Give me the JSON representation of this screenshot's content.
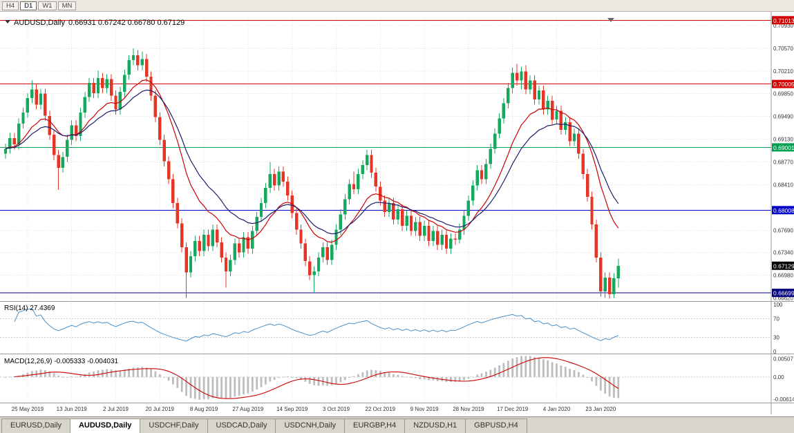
{
  "toolbar": {
    "timeframe_buttons": [
      {
        "label": "H4",
        "active": false
      },
      {
        "label": "D1",
        "active": true
      },
      {
        "label": "W1",
        "active": false
      },
      {
        "label": "MN",
        "active": false
      }
    ]
  },
  "chart": {
    "title": "AUDUSD,Daily",
    "ohlc_text": "0.66931 0.67242 0.66780 0.67129",
    "rsi_label": "RSI(14) 27.4369",
    "macd_label": "MACD(12,26,9) -0.005333 -0.004031"
  },
  "chart_data": {
    "type": "candlestick",
    "symbol": "AUDUSD",
    "timeframe": "Daily",
    "ohlc_display": {
      "open": 0.66931,
      "high": 0.67242,
      "low": 0.6678,
      "close": 0.67129
    },
    "ylim": [
      0.6658,
      0.7106
    ],
    "grid_color": "#e0e0e0",
    "up_color": "#16a85e",
    "down_color": "#e53527",
    "candles": [
      [
        0.689,
        0.6906,
        0.6882,
        0.6898
      ],
      [
        0.6898,
        0.6923,
        0.689,
        0.6915
      ],
      [
        0.6915,
        0.6923,
        0.6897,
        0.6905
      ],
      [
        0.6905,
        0.6946,
        0.6897,
        0.6938
      ],
      [
        0.6938,
        0.6963,
        0.693,
        0.6955
      ],
      [
        0.6955,
        0.6986,
        0.6947,
        0.6978
      ],
      [
        0.6978,
        0.7006,
        0.697,
        0.6992
      ],
      [
        0.6992,
        0.7,
        0.696,
        0.6968
      ],
      [
        0.6968,
        0.6993,
        0.696,
        0.6985
      ],
      [
        0.6985,
        0.6993,
        0.6942,
        0.695
      ],
      [
        0.695,
        0.6958,
        0.6912,
        0.692
      ],
      [
        0.692,
        0.6928,
        0.688,
        0.6888
      ],
      [
        0.6888,
        0.6896,
        0.6833,
        0.6868
      ],
      [
        0.6868,
        0.6893,
        0.686,
        0.6885
      ],
      [
        0.6885,
        0.692,
        0.6877,
        0.6912
      ],
      [
        0.6912,
        0.6943,
        0.6904,
        0.6935
      ],
      [
        0.6935,
        0.6943,
        0.691,
        0.6918
      ],
      [
        0.6918,
        0.6963,
        0.691,
        0.6955
      ],
      [
        0.6955,
        0.6988,
        0.6947,
        0.698
      ],
      [
        0.698,
        0.701,
        0.6972,
        0.7002
      ],
      [
        0.7002,
        0.701,
        0.6978,
        0.6986
      ],
      [
        0.6986,
        0.7022,
        0.6978,
        0.701
      ],
      [
        0.701,
        0.7018,
        0.6986,
        0.6994
      ],
      [
        0.6994,
        0.7016,
        0.6986,
        0.7008
      ],
      [
        0.7008,
        0.7016,
        0.6974,
        0.6982
      ],
      [
        0.6982,
        0.699,
        0.6952,
        0.696
      ],
      [
        0.696,
        0.6996,
        0.6952,
        0.6988
      ],
      [
        0.6988,
        0.7023,
        0.698,
        0.7015
      ],
      [
        0.7015,
        0.7046,
        0.7007,
        0.7038
      ],
      [
        0.7038,
        0.7057,
        0.703,
        0.7046
      ],
      [
        0.7046,
        0.7054,
        0.7022,
        0.703
      ],
      [
        0.703,
        0.7052,
        0.7022,
        0.704
      ],
      [
        0.704,
        0.7048,
        0.7004,
        0.7012
      ],
      [
        0.7012,
        0.702,
        0.6974,
        0.6982
      ],
      [
        0.6982,
        0.699,
        0.694,
        0.6948
      ],
      [
        0.6948,
        0.6956,
        0.6904,
        0.6912
      ],
      [
        0.6912,
        0.692,
        0.687,
        0.6878
      ],
      [
        0.6878,
        0.6886,
        0.6842,
        0.685
      ],
      [
        0.685,
        0.6858,
        0.6804,
        0.6812
      ],
      [
        0.6812,
        0.682,
        0.6772,
        0.678
      ],
      [
        0.678,
        0.6788,
        0.6734,
        0.6742
      ],
      [
        0.6742,
        0.675,
        0.6662,
        0.6702
      ],
      [
        0.6702,
        0.6736,
        0.6694,
        0.6728
      ],
      [
        0.6728,
        0.676,
        0.672,
        0.6752
      ],
      [
        0.6752,
        0.676,
        0.6728,
        0.6736
      ],
      [
        0.6736,
        0.677,
        0.6728,
        0.6762
      ],
      [
        0.6762,
        0.677,
        0.6736,
        0.6744
      ],
      [
        0.6744,
        0.6778,
        0.6736,
        0.677
      ],
      [
        0.677,
        0.6778,
        0.6742,
        0.675
      ],
      [
        0.675,
        0.6758,
        0.6718,
        0.6726
      ],
      [
        0.6726,
        0.6734,
        0.6678,
        0.6704
      ],
      [
        0.6704,
        0.673,
        0.6696,
        0.6722
      ],
      [
        0.6722,
        0.6756,
        0.6714,
        0.6748
      ],
      [
        0.6748,
        0.6756,
        0.6726,
        0.6734
      ],
      [
        0.6734,
        0.6766,
        0.6726,
        0.6758
      ],
      [
        0.6758,
        0.6766,
        0.6732,
        0.674
      ],
      [
        0.674,
        0.6776,
        0.6732,
        0.6768
      ],
      [
        0.6768,
        0.6798,
        0.676,
        0.679
      ],
      [
        0.679,
        0.682,
        0.6782,
        0.6812
      ],
      [
        0.6812,
        0.6844,
        0.6804,
        0.6836
      ],
      [
        0.6836,
        0.6877,
        0.6828,
        0.6858
      ],
      [
        0.6858,
        0.6866,
        0.6832,
        0.684
      ],
      [
        0.684,
        0.687,
        0.6832,
        0.6862
      ],
      [
        0.6862,
        0.687,
        0.6838,
        0.6846
      ],
      [
        0.6846,
        0.6854,
        0.6816,
        0.6824
      ],
      [
        0.6824,
        0.6832,
        0.6788,
        0.6796
      ],
      [
        0.6796,
        0.6804,
        0.6762,
        0.677
      ],
      [
        0.677,
        0.6778,
        0.674,
        0.6748
      ],
      [
        0.6748,
        0.6756,
        0.6712,
        0.672
      ],
      [
        0.672,
        0.6728,
        0.669,
        0.6698
      ],
      [
        0.6698,
        0.6712,
        0.6671,
        0.6704
      ],
      [
        0.6704,
        0.6734,
        0.6696,
        0.6726
      ],
      [
        0.6726,
        0.675,
        0.6718,
        0.6742
      ],
      [
        0.6742,
        0.675,
        0.6714,
        0.6722
      ],
      [
        0.6722,
        0.6754,
        0.6714,
        0.6746
      ],
      [
        0.6746,
        0.6778,
        0.6738,
        0.677
      ],
      [
        0.677,
        0.6802,
        0.6762,
        0.6794
      ],
      [
        0.6794,
        0.6826,
        0.6786,
        0.6818
      ],
      [
        0.6818,
        0.685,
        0.681,
        0.6842
      ],
      [
        0.6842,
        0.6862,
        0.6826,
        0.6834
      ],
      [
        0.6834,
        0.6866,
        0.6826,
        0.6858
      ],
      [
        0.6858,
        0.688,
        0.685,
        0.6872
      ],
      [
        0.6872,
        0.6896,
        0.6864,
        0.6888
      ],
      [
        0.6888,
        0.6896,
        0.6852,
        0.686
      ],
      [
        0.686,
        0.6868,
        0.683,
        0.6838
      ],
      [
        0.6838,
        0.6846,
        0.6808,
        0.6816
      ],
      [
        0.6816,
        0.6824,
        0.679,
        0.6798
      ],
      [
        0.6798,
        0.682,
        0.679,
        0.6812
      ],
      [
        0.6812,
        0.682,
        0.6778,
        0.6786
      ],
      [
        0.6786,
        0.681,
        0.6778,
        0.6802
      ],
      [
        0.6802,
        0.681,
        0.6768,
        0.6776
      ],
      [
        0.6776,
        0.68,
        0.6768,
        0.6792
      ],
      [
        0.6792,
        0.68,
        0.676,
        0.6768
      ],
      [
        0.6768,
        0.679,
        0.676,
        0.6782
      ],
      [
        0.6782,
        0.679,
        0.6752,
        0.676
      ],
      [
        0.676,
        0.6784,
        0.6752,
        0.6776
      ],
      [
        0.6776,
        0.6784,
        0.6744,
        0.6752
      ],
      [
        0.6752,
        0.6776,
        0.6744,
        0.6768
      ],
      [
        0.6768,
        0.6776,
        0.6738,
        0.6746
      ],
      [
        0.6746,
        0.677,
        0.6738,
        0.6762
      ],
      [
        0.6762,
        0.677,
        0.6732,
        0.674
      ],
      [
        0.674,
        0.6764,
        0.6732,
        0.6756
      ],
      [
        0.6756,
        0.6764,
        0.6746,
        0.6754
      ],
      [
        0.6754,
        0.678,
        0.6748,
        0.677
      ],
      [
        0.677,
        0.68,
        0.6762,
        0.6792
      ],
      [
        0.6792,
        0.6824,
        0.6784,
        0.6816
      ],
      [
        0.6816,
        0.6848,
        0.6808,
        0.684
      ],
      [
        0.684,
        0.6872,
        0.6832,
        0.6864
      ],
      [
        0.6864,
        0.6872,
        0.6842,
        0.685
      ],
      [
        0.685,
        0.6882,
        0.6842,
        0.6874
      ],
      [
        0.6874,
        0.6906,
        0.6866,
        0.6898
      ],
      [
        0.6898,
        0.693,
        0.689,
        0.6922
      ],
      [
        0.6922,
        0.6954,
        0.6914,
        0.6946
      ],
      [
        0.6946,
        0.6978,
        0.6938,
        0.697
      ],
      [
        0.697,
        0.7002,
        0.6962,
        0.6994
      ],
      [
        0.6994,
        0.7026,
        0.6986,
        0.7018
      ],
      [
        0.7018,
        0.7032,
        0.6998,
        0.7006
      ],
      [
        0.7006,
        0.7028,
        0.6992,
        0.702
      ],
      [
        0.702,
        0.703,
        0.6984,
        0.6992
      ],
      [
        0.6992,
        0.7014,
        0.6984,
        0.7006
      ],
      [
        0.7006,
        0.7014,
        0.6968,
        0.6976
      ],
      [
        0.6976,
        0.6998,
        0.6968,
        0.699
      ],
      [
        0.699,
        0.6998,
        0.6952,
        0.696
      ],
      [
        0.696,
        0.6982,
        0.6952,
        0.6974
      ],
      [
        0.6974,
        0.6982,
        0.6936,
        0.6944
      ],
      [
        0.6944,
        0.6966,
        0.6936,
        0.6958
      ],
      [
        0.6958,
        0.6966,
        0.692,
        0.6928
      ],
      [
        0.6928,
        0.6948,
        0.692,
        0.694
      ],
      [
        0.694,
        0.6948,
        0.6902,
        0.691
      ],
      [
        0.691,
        0.693,
        0.6902,
        0.6922
      ],
      [
        0.6922,
        0.693,
        0.6882,
        0.689
      ],
      [
        0.689,
        0.6898,
        0.685,
        0.6858
      ],
      [
        0.6858,
        0.6866,
        0.6814,
        0.6822
      ],
      [
        0.6822,
        0.683,
        0.677,
        0.6778
      ],
      [
        0.6778,
        0.6786,
        0.6718,
        0.6726
      ],
      [
        0.6726,
        0.6734,
        0.6664,
        0.6672
      ],
      [
        0.6672,
        0.6702,
        0.6662,
        0.6694
      ],
      [
        0.6694,
        0.6702,
        0.6661,
        0.6668
      ],
      [
        0.6668,
        0.6701,
        0.6662,
        0.6693
      ],
      [
        0.66931,
        0.67242,
        0.6678,
        0.67129
      ]
    ],
    "date_labels": [
      {
        "bar": 5,
        "label": "25 May 2019"
      },
      {
        "bar": 15,
        "label": "13 Jun 2019"
      },
      {
        "bar": 25,
        "label": "2 Jul 2019"
      },
      {
        "bar": 35,
        "label": "20 Jul 2019"
      },
      {
        "bar": 45,
        "label": "8 Aug 2019"
      },
      {
        "bar": 55,
        "label": "27 Aug 2019"
      },
      {
        "bar": 65,
        "label": "14 Sep 2019"
      },
      {
        "bar": 75,
        "label": "3 Oct 2019"
      },
      {
        "bar": 85,
        "label": "22 Oct 2019"
      },
      {
        "bar": 95,
        "label": "9 Nov 2019"
      },
      {
        "bar": 105,
        "label": "28 Nov 2019"
      },
      {
        "bar": 115,
        "label": "17 Dec 2019"
      },
      {
        "bar": 125,
        "label": "4 Jan 2020"
      },
      {
        "bar": 135,
        "label": "23 Jan 2020"
      }
    ],
    "price_ticks": [
      "0.70930",
      "0.70570",
      "0.70210",
      "0.69850",
      "0.69490",
      "0.69130",
      "0.68770",
      "0.68410",
      "0.67690",
      "0.67340",
      "0.66980",
      "0.66620"
    ],
    "levels": [
      {
        "price": 0.71013,
        "label": "0.71013",
        "color": "#d40000",
        "type": "resistance"
      },
      {
        "price": 0.70005,
        "label": "0.70005",
        "color": "#d40000",
        "type": "resistance"
      },
      {
        "price": 0.69001,
        "label": "0.69001",
        "color": "#00a050",
        "type": "pivot"
      },
      {
        "price": 0.68008,
        "label": "0.68008",
        "color": "#0000c8",
        "type": "support"
      },
      {
        "price": 0.66699,
        "label": "0.66699",
        "color": "#000080",
        "type": "support"
      }
    ],
    "current_price": {
      "value": 0.67129,
      "label": "0.67129",
      "color": "#000000"
    },
    "moving_averages": [
      {
        "period": 13,
        "method": "ema",
        "color": "#cc0000"
      },
      {
        "period": 21,
        "method": "ema",
        "color": "#1c1c6e"
      }
    ],
    "rsi": {
      "period": 14,
      "value": 27.4369,
      "label": "RSI(14) 27.4369",
      "scale": [
        100,
        70,
        30,
        0
      ],
      "color": "#4a90c9"
    },
    "macd": {
      "params": [
        12,
        26,
        9
      ],
      "macd_value": -0.005333,
      "signal_value": -0.004031,
      "label": "MACD(12,26,9) -0.005333 -0.004031",
      "scale_labels": [
        "0.00507",
        "0.00",
        "-0.00614"
      ],
      "histogram_color": "#bdbdbd",
      "signal_color": "#cc0000"
    }
  },
  "tabs": [
    {
      "label": "EURUSD,Daily",
      "active": false
    },
    {
      "label": "AUDUSD,Daily",
      "active": true
    },
    {
      "label": "USDCHF,Daily",
      "active": false
    },
    {
      "label": "USDCAD,Daily",
      "active": false
    },
    {
      "label": "USDCNH,Daily",
      "active": false
    },
    {
      "label": "EURGBP,H4",
      "active": false
    },
    {
      "label": "NZDUSD,H1",
      "active": false
    },
    {
      "label": "GBPUSD,H4",
      "active": false
    }
  ]
}
